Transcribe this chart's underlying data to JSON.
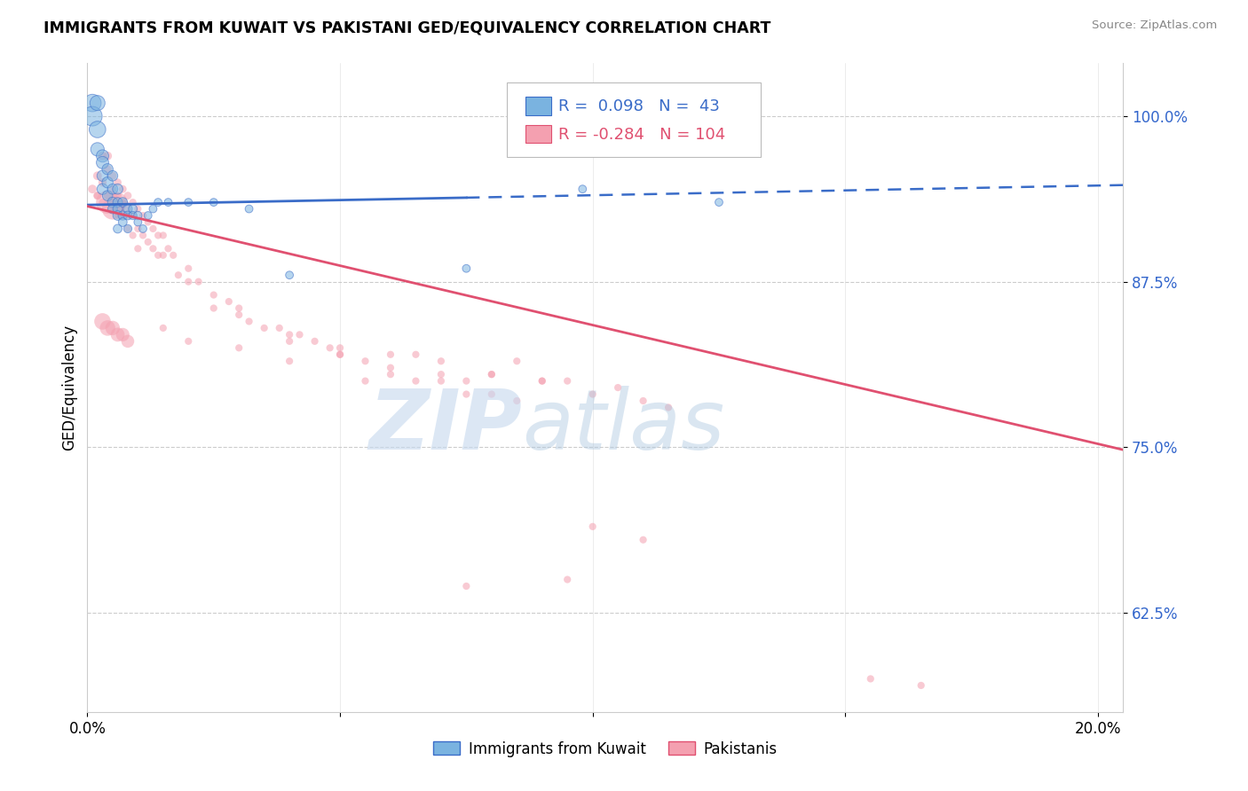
{
  "title": "IMMIGRANTS FROM KUWAIT VS PAKISTANI GED/EQUIVALENCY CORRELATION CHART",
  "source": "Source: ZipAtlas.com",
  "ylabel": "GED/Equivalency",
  "yticks": [
    0.625,
    0.75,
    0.875,
    1.0
  ],
  "ytick_labels": [
    "62.5%",
    "75.0%",
    "87.5%",
    "100.0%"
  ],
  "xticks": [
    0.0,
    0.05,
    0.1,
    0.15,
    0.2
  ],
  "xtick_labels": [
    "0.0%",
    "",
    "",
    "",
    "20.0%"
  ],
  "xlim": [
    0.0,
    0.205
  ],
  "ylim": [
    0.55,
    1.04
  ],
  "blue_R": 0.098,
  "blue_N": 43,
  "pink_R": -0.284,
  "pink_N": 104,
  "blue_color": "#7ab3e0",
  "pink_color": "#f4a0b0",
  "blue_line_color": "#3a6cc8",
  "pink_line_color": "#e05070",
  "blue_line_solid_end": 0.075,
  "blue_line_x0": 0.0,
  "blue_line_y0": 0.933,
  "blue_line_x1": 0.205,
  "blue_line_y1": 0.948,
  "pink_line_x0": 0.0,
  "pink_line_y0": 0.932,
  "pink_line_x1": 0.205,
  "pink_line_y1": 0.748,
  "watermark_zip": "ZIP",
  "watermark_atlas": "atlas",
  "legend_label_blue": "Immigrants from Kuwait",
  "legend_label_pink": "Pakistanis",
  "blue_scatter_x": [
    0.001,
    0.001,
    0.002,
    0.002,
    0.002,
    0.003,
    0.003,
    0.003,
    0.003,
    0.004,
    0.004,
    0.004,
    0.005,
    0.005,
    0.005,
    0.005,
    0.006,
    0.006,
    0.006,
    0.006,
    0.006,
    0.007,
    0.007,
    0.007,
    0.008,
    0.008,
    0.008,
    0.009,
    0.009,
    0.01,
    0.01,
    0.011,
    0.012,
    0.013,
    0.014,
    0.016,
    0.02,
    0.025,
    0.032,
    0.04,
    0.075,
    0.098,
    0.125
  ],
  "blue_scatter_y": [
    1.01,
    1.0,
    0.99,
    1.01,
    0.975,
    0.97,
    0.965,
    0.955,
    0.945,
    0.96,
    0.95,
    0.94,
    0.955,
    0.945,
    0.935,
    0.93,
    0.945,
    0.935,
    0.93,
    0.925,
    0.915,
    0.935,
    0.925,
    0.92,
    0.93,
    0.925,
    0.915,
    0.93,
    0.925,
    0.925,
    0.92,
    0.915,
    0.925,
    0.93,
    0.935,
    0.935,
    0.935,
    0.935,
    0.93,
    0.88,
    0.885,
    0.945,
    0.935
  ],
  "blue_scatter_size": [
    200,
    250,
    180,
    150,
    120,
    100,
    100,
    80,
    80,
    80,
    80,
    70,
    70,
    70,
    70,
    60,
    70,
    60,
    60,
    60,
    50,
    60,
    55,
    50,
    55,
    50,
    45,
    50,
    45,
    45,
    40,
    40,
    40,
    40,
    40,
    40,
    40,
    40,
    40,
    40,
    40,
    40,
    40
  ],
  "pink_scatter_x": [
    0.001,
    0.002,
    0.002,
    0.003,
    0.003,
    0.004,
    0.004,
    0.004,
    0.005,
    0.005,
    0.005,
    0.006,
    0.006,
    0.006,
    0.007,
    0.007,
    0.007,
    0.008,
    0.008,
    0.008,
    0.009,
    0.009,
    0.009,
    0.01,
    0.01,
    0.01,
    0.011,
    0.011,
    0.012,
    0.012,
    0.013,
    0.013,
    0.014,
    0.014,
    0.015,
    0.015,
    0.016,
    0.017,
    0.018,
    0.02,
    0.022,
    0.025,
    0.028,
    0.03,
    0.032,
    0.035,
    0.038,
    0.04,
    0.042,
    0.045,
    0.048,
    0.05,
    0.055,
    0.06,
    0.065,
    0.07,
    0.075,
    0.08,
    0.085,
    0.09,
    0.095,
    0.1,
    0.105,
    0.11,
    0.115,
    0.05,
    0.06,
    0.07,
    0.08,
    0.09,
    0.02,
    0.025,
    0.03,
    0.04,
    0.05,
    0.06,
    0.07,
    0.08,
    0.002,
    0.003,
    0.004,
    0.005,
    0.006,
    0.007,
    0.003,
    0.004,
    0.005,
    0.006,
    0.007,
    0.008,
    0.015,
    0.02,
    0.03,
    0.04,
    0.055,
    0.065,
    0.075,
    0.085,
    0.155,
    0.165,
    0.1,
    0.11,
    0.095,
    0.075
  ],
  "pink_scatter_y": [
    0.945,
    0.955,
    0.94,
    0.97,
    0.95,
    0.97,
    0.96,
    0.94,
    0.955,
    0.945,
    0.93,
    0.95,
    0.94,
    0.925,
    0.945,
    0.935,
    0.925,
    0.94,
    0.925,
    0.915,
    0.935,
    0.925,
    0.91,
    0.93,
    0.915,
    0.9,
    0.925,
    0.91,
    0.92,
    0.905,
    0.915,
    0.9,
    0.91,
    0.895,
    0.91,
    0.895,
    0.9,
    0.895,
    0.88,
    0.885,
    0.875,
    0.865,
    0.86,
    0.855,
    0.845,
    0.84,
    0.84,
    0.835,
    0.835,
    0.83,
    0.825,
    0.82,
    0.815,
    0.81,
    0.82,
    0.815,
    0.8,
    0.805,
    0.815,
    0.8,
    0.8,
    0.79,
    0.795,
    0.785,
    0.78,
    0.825,
    0.82,
    0.805,
    0.805,
    0.8,
    0.875,
    0.855,
    0.85,
    0.83,
    0.82,
    0.805,
    0.8,
    0.79,
    0.94,
    0.935,
    0.935,
    0.93,
    0.935,
    0.93,
    0.845,
    0.84,
    0.84,
    0.835,
    0.835,
    0.83,
    0.84,
    0.83,
    0.825,
    0.815,
    0.8,
    0.8,
    0.79,
    0.785,
    0.575,
    0.57,
    0.69,
    0.68,
    0.65,
    0.645
  ],
  "pink_scatter_size": [
    50,
    50,
    45,
    50,
    45,
    50,
    45,
    40,
    45,
    40,
    40,
    40,
    40,
    35,
    40,
    35,
    35,
    40,
    35,
    35,
    35,
    35,
    35,
    35,
    35,
    35,
    35,
    35,
    35,
    35,
    35,
    35,
    35,
    35,
    35,
    35,
    35,
    35,
    35,
    35,
    35,
    35,
    35,
    35,
    35,
    35,
    35,
    35,
    35,
    35,
    35,
    35,
    35,
    35,
    35,
    35,
    35,
    35,
    35,
    35,
    35,
    35,
    35,
    35,
    35,
    35,
    35,
    35,
    35,
    35,
    35,
    35,
    35,
    35,
    35,
    35,
    35,
    35,
    35,
    35,
    350,
    300,
    250,
    200,
    180,
    160,
    140,
    130,
    120,
    110,
    35,
    35,
    35,
    35,
    35,
    35,
    35,
    35,
    35,
    35,
    35,
    35,
    35,
    35
  ]
}
